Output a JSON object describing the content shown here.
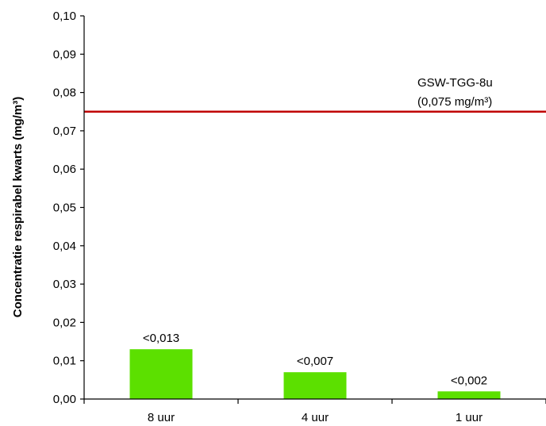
{
  "chart_data": {
    "type": "bar",
    "categories": [
      "8 uur",
      "4 uur",
      "1 uur"
    ],
    "values": [
      0.013,
      0.007,
      0.002
    ],
    "data_labels": [
      "<0,013",
      "<0,007",
      "<0,002"
    ],
    "ylabel": "Concentratie respirabel kwarts (mg/m³)",
    "xlabel": "",
    "ylim": [
      0,
      0.1
    ],
    "yticks": [
      "0,00",
      "0,01",
      "0,02",
      "0,03",
      "0,04",
      "0,05",
      "0,06",
      "0,07",
      "0,08",
      "0,09",
      "0,10"
    ],
    "grid": false,
    "bar_color": "#5ce000",
    "reference_line": {
      "value": 0.075,
      "color": "#c00000",
      "label_line1": "GSW-TGG-8u",
      "label_line2": "(0,075 mg/m³)"
    }
  }
}
